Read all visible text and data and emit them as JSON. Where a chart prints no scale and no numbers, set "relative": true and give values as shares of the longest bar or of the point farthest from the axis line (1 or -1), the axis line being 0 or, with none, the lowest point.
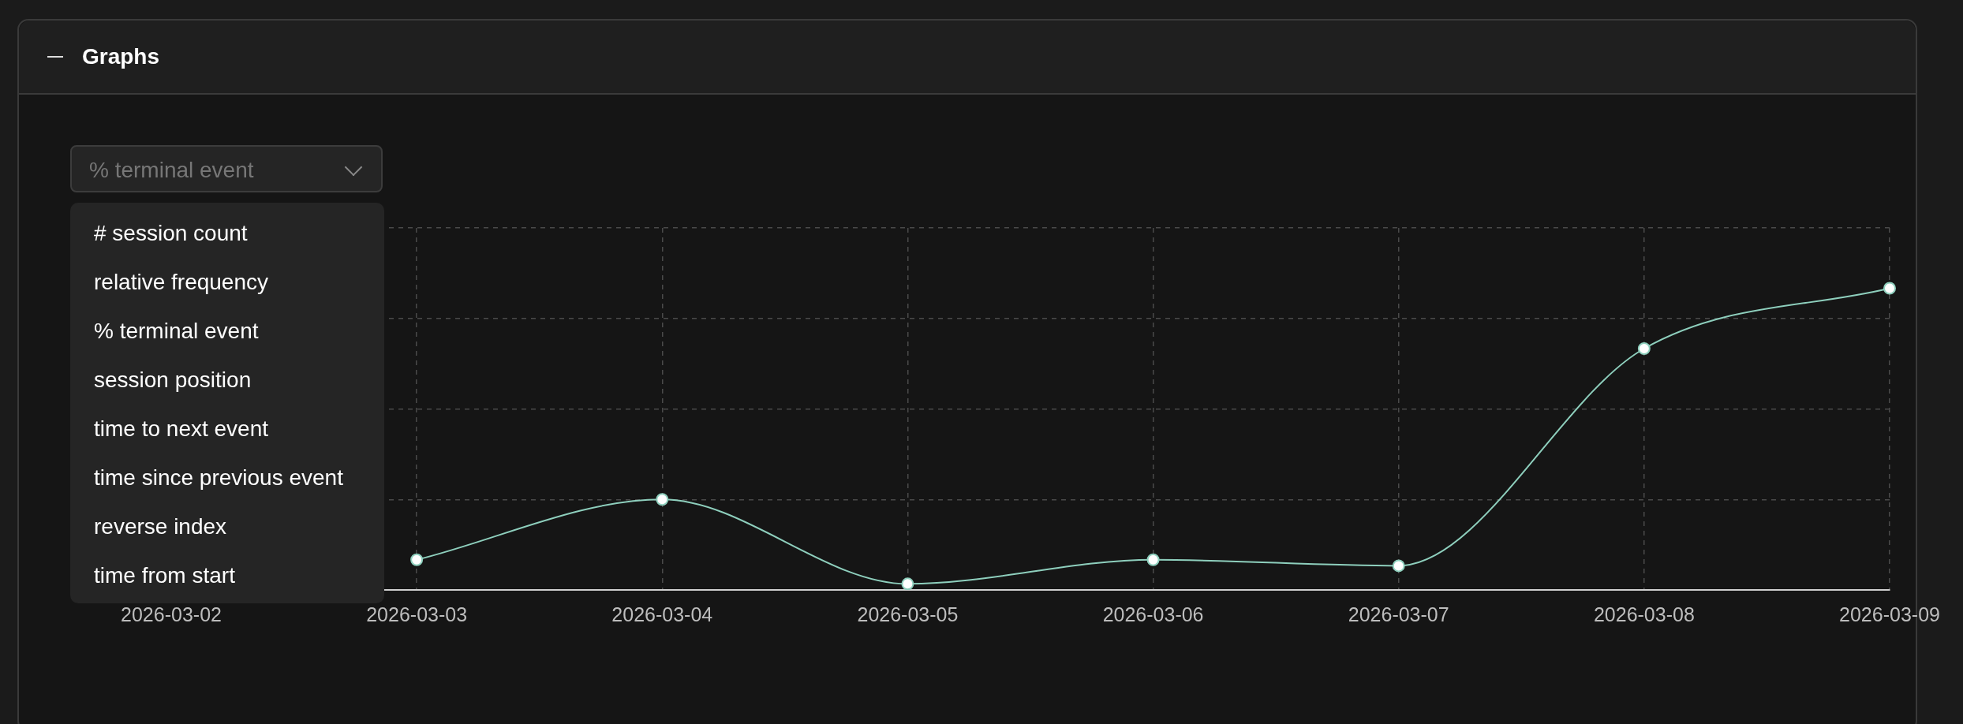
{
  "chart_data": {
    "type": "line",
    "title": "Graphs",
    "subtitle": "% terminal event",
    "annotations": [
      "# session count",
      "relative frequency",
      "% terminal event",
      "session position",
      "time to next event",
      "time since previous event",
      "reverse index",
      "time from start"
    ],
    "categories": [
      "2026-03-02",
      "2026-03-03",
      "2026-03-04",
      "2026-03-05",
      "2026-03-06",
      "2026-03-07",
      "2026-03-08",
      "2026-03-09"
    ],
    "series": [
      {
        "color": "#8ecfbd",
        "values": [
          null,
          0.1,
          0.3,
          0.02,
          0.1,
          0.08,
          0.8,
          1
        ]
      }
    ],
    "relative": true,
    "grid": true,
    "legend": false,
    "marker": "circle",
    "line_style": "solid"
  }
}
